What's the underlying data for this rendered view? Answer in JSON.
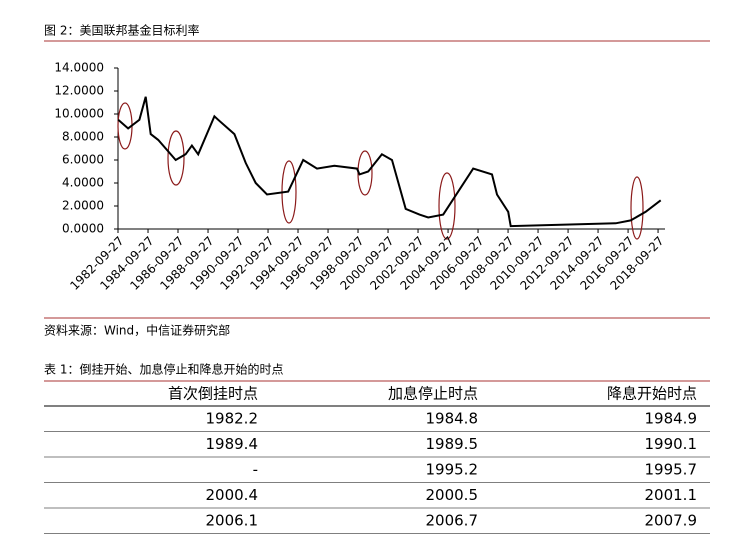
{
  "chart_data": {
    "type": "line",
    "title": "图 2：美国联邦基金目标利率",
    "x": [
      "1982-10-01",
      "1983-06-01",
      "1984-03-01",
      "1984-08-01",
      "1984-12-01",
      "1985-06-01",
      "1986-08-01",
      "1987-04-01",
      "1987-09-01",
      "1988-02-01",
      "1989-03-01",
      "1989-06-01",
      "1990-07-01",
      "1991-04-01",
      "1991-12-01",
      "1992-09-01",
      "1994-02-01",
      "1995-02-01",
      "1996-01-01",
      "1997-03-01",
      "1998-09-01",
      "1998-11-01",
      "1999-06-01",
      "2000-05-01",
      "2001-01-01",
      "2001-12-01",
      "2002-11-01",
      "2003-06-01",
      "2004-06-01",
      "2006-06-01",
      "2007-09-01",
      "2008-01-01",
      "2008-10-01",
      "2008-12-01",
      "2015-12-01",
      "2016-12-01",
      "2017-12-01",
      "2018-12-01"
    ],
    "series": [
      {
        "color": "#000000",
        "values": [
          9.5,
          8.75,
          9.5,
          11.5,
          8.25,
          7.75,
          6.0,
          6.5,
          7.25,
          6.5,
          9.8,
          9.5,
          8.25,
          5.75,
          4.0,
          3.0,
          3.25,
          6.0,
          5.25,
          5.5,
          5.25,
          4.75,
          5.0,
          6.5,
          6.0,
          1.75,
          1.25,
          1.0,
          1.25,
          5.25,
          4.75,
          3.0,
          1.5,
          0.25,
          0.5,
          0.75,
          1.5,
          2.5
        ]
      }
    ],
    "xlim": [
      "1982-09-27",
      "2019-03-15"
    ],
    "xticks": [
      "1982-09-27",
      "1984-09-27",
      "1986-09-27",
      "1988-09-27",
      "1990-09-27",
      "1992-09-27",
      "1994-09-27",
      "1996-09-27",
      "1998-09-27",
      "2000-09-27",
      "2002-09-27",
      "2004-09-27",
      "2006-09-27",
      "2008-09-27",
      "2010-09-27",
      "2012-09-27",
      "2014-09-27",
      "2016-09-27",
      "2018-09-27"
    ],
    "ylim": [
      0,
      14
    ],
    "yticks": [
      {
        "value": 0,
        "label": "0.0000"
      },
      {
        "value": 2,
        "label": "2.0000"
      },
      {
        "value": 4,
        "label": "4.0000"
      },
      {
        "value": 6,
        "label": "6.0000"
      },
      {
        "value": 8,
        "label": "8.0000"
      },
      {
        "value": 10,
        "label": "10.0000"
      },
      {
        "value": 12,
        "label": "12.0000"
      },
      {
        "value": 14,
        "label": "14.0000"
      }
    ],
    "grid": false
  },
  "source": "资料来源：Wind，中信证券研究部",
  "table": {
    "caption": "表 1：倒挂开始、加息停止和降息开始的时点",
    "header": [
      "首次倒挂时点",
      "加息停止时点",
      "降息开始时点"
    ],
    "rows": [
      [
        "1982.2",
        "1984.8",
        "1984.9"
      ],
      [
        "1989.4",
        "1989.5",
        "1990.1"
      ],
      [
        "-",
        "1995.2",
        "1995.7"
      ],
      [
        "2000.4",
        "2000.5",
        "2001.1"
      ],
      [
        "2006.1",
        "2006.7",
        "2007.9"
      ]
    ]
  }
}
